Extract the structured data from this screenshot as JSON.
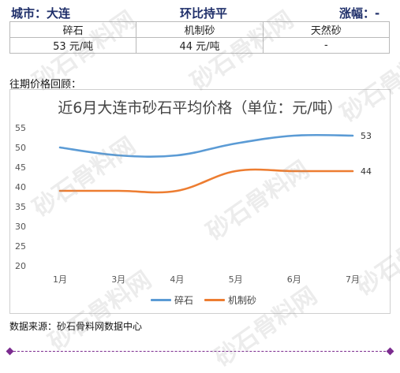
{
  "header": {
    "city": "城市：大连",
    "trend": "环比持平",
    "change": "涨幅：-"
  },
  "price_table": {
    "columns": [
      "碎石",
      "机制砂",
      "天然砂"
    ],
    "values": [
      "53 元/吨",
      "44 元/吨",
      "-"
    ]
  },
  "review_label": "往期价格回顾：",
  "source": "数据来源：砂石骨料网数据中心",
  "watermark": "砂石骨料网",
  "colors": {
    "header_text": "#1f2f6a",
    "series_1": "#5b9bd5",
    "series_2": "#ed7d31",
    "divider": "#7b2b8f"
  },
  "chart_data": {
    "type": "line",
    "title": "近6月大连市砂石平均价格（单位：元/吨）",
    "categories": [
      "1月",
      "3月",
      "4月",
      "5月",
      "6月",
      "7月"
    ],
    "series": [
      {
        "name": "碎石",
        "values": [
          50,
          48,
          48,
          51,
          53,
          53
        ]
      },
      {
        "name": "机制砂",
        "values": [
          39,
          39,
          39,
          44,
          44,
          44
        ]
      }
    ],
    "end_labels": [
      "53",
      "44"
    ],
    "ylim": [
      20,
      55
    ],
    "yticks": [
      "20",
      "25",
      "30",
      "35",
      "40",
      "45",
      "50",
      "55"
    ],
    "grid": false,
    "legend_position": "bottom"
  }
}
